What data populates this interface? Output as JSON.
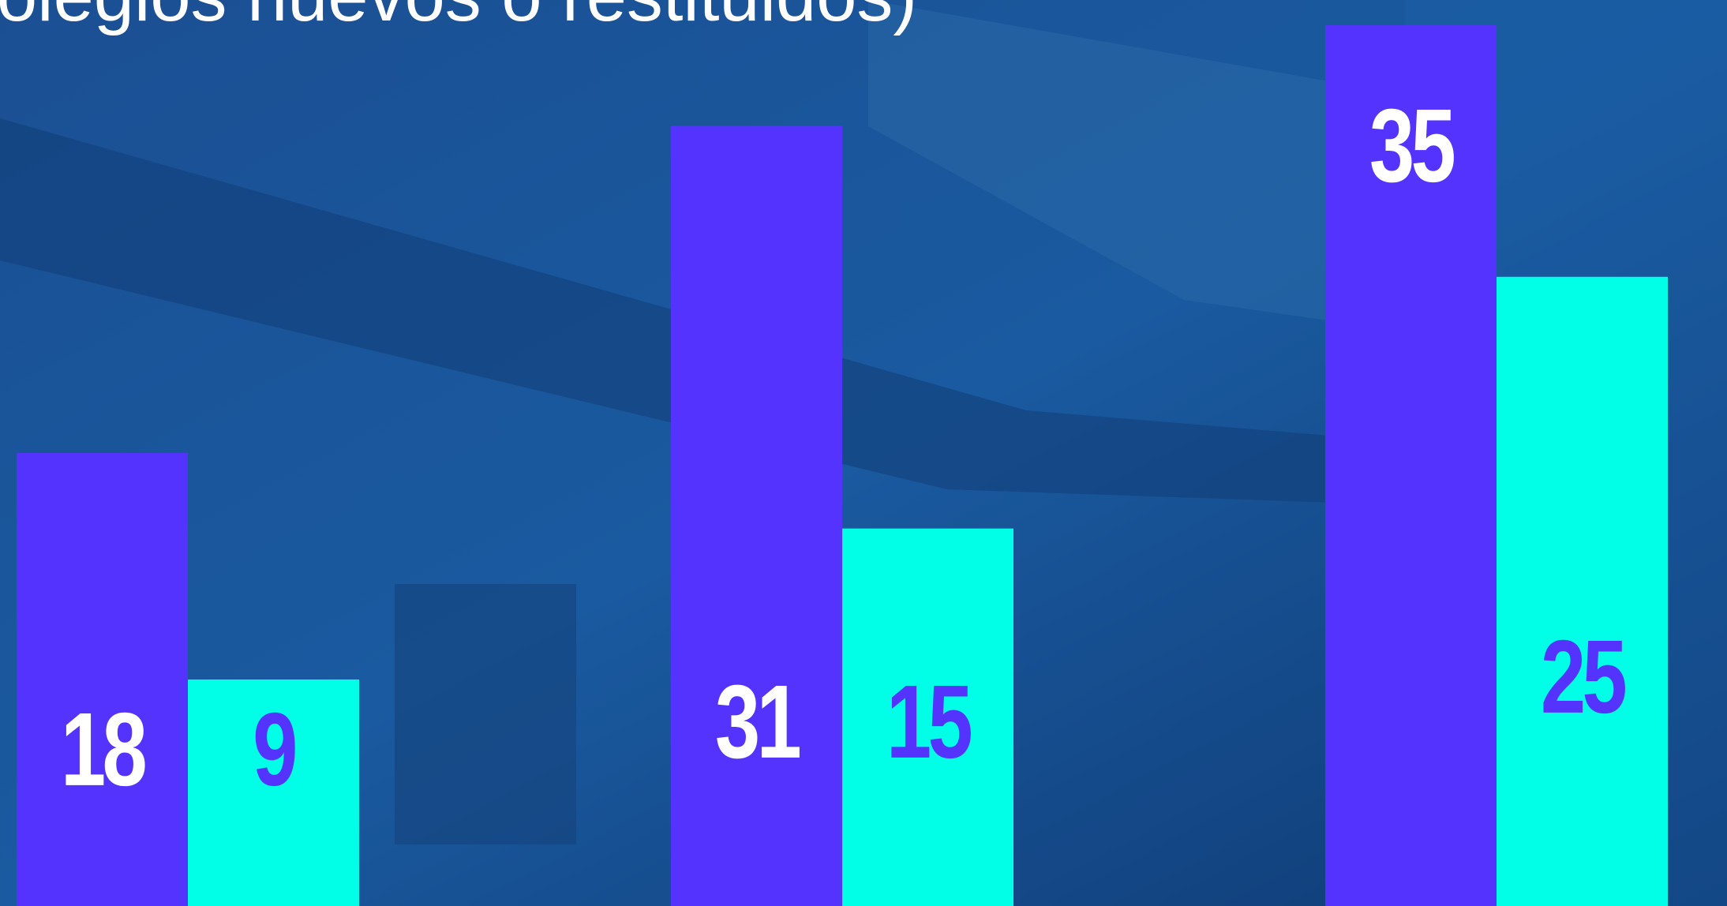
{
  "chart_data": {
    "type": "bar",
    "title": "olegios nuevos o restituidos)",
    "categories": [
      null,
      null,
      null
    ],
    "series": [
      {
        "color": "#5533ff",
        "values": [
          18,
          31,
          35
        ]
      },
      {
        "color": "#00ffe6",
        "values": [
          9,
          15,
          25
        ]
      }
    ],
    "ylim": [
      0,
      36
    ]
  }
}
